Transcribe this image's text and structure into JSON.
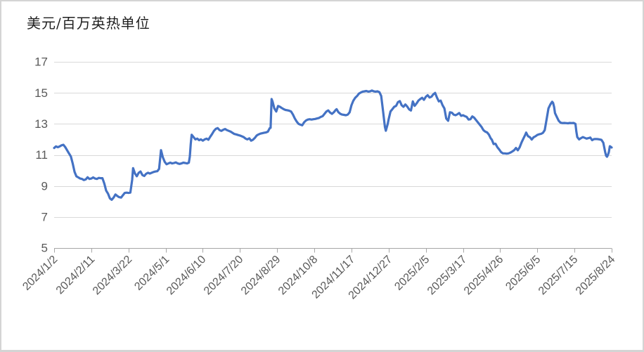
{
  "chart": {
    "title": "美元/百万英热单位"
  },
  "colors": {
    "line": "#4472C4",
    "gridline": "#d9d9d9",
    "axis": "#a6a6a6",
    "tick_label": "#595959",
    "title": "#1f1f1f",
    "frame_border": "#d4d4d4",
    "background": "#ffffff"
  },
  "chart_data": {
    "type": "line",
    "title": "美元/百万英热单位",
    "xlabel": "",
    "ylabel": "",
    "legend": "none",
    "grid": true,
    "ylim": [
      5,
      17
    ],
    "y_ticks": [
      5,
      7,
      9,
      11,
      13,
      15,
      17
    ],
    "xlim_days": [
      0,
      600
    ],
    "x_tick_interval_days": 40,
    "x_tick_labels": [
      "2024/1/2",
      "2024/2/11",
      "2024/3/22",
      "2024/5/1",
      "2024/6/10",
      "2024/7/20",
      "2024/8/29",
      "2024/10/8",
      "2024/11/17",
      "2024/12/27",
      "2025/2/5",
      "2025/3/17",
      "2025/4/26",
      "2025/6/5",
      "2025/7/15",
      "2025/8/24"
    ],
    "series_name": "美元/百万英热单位",
    "points_format": "[days_since_2024-01-02, usd_per_mmbtu]",
    "points": [
      [
        0,
        11.45
      ],
      [
        2,
        11.55
      ],
      [
        4,
        11.5
      ],
      [
        6,
        11.55
      ],
      [
        8,
        11.62
      ],
      [
        10,
        11.65
      ],
      [
        12,
        11.5
      ],
      [
        14,
        11.3
      ],
      [
        16,
        11.1
      ],
      [
        18,
        10.9
      ],
      [
        20,
        10.45
      ],
      [
        22,
        9.9
      ],
      [
        24,
        9.62
      ],
      [
        26,
        9.55
      ],
      [
        28,
        9.48
      ],
      [
        30,
        9.45
      ],
      [
        32,
        9.38
      ],
      [
        34,
        9.42
      ],
      [
        36,
        9.56
      ],
      [
        38,
        9.45
      ],
      [
        40,
        9.48
      ],
      [
        42,
        9.55
      ],
      [
        44,
        9.48
      ],
      [
        46,
        9.45
      ],
      [
        48,
        9.52
      ],
      [
        50,
        9.5
      ],
      [
        52,
        9.5
      ],
      [
        54,
        9.15
      ],
      [
        56,
        8.7
      ],
      [
        58,
        8.5
      ],
      [
        60,
        8.2
      ],
      [
        62,
        8.11
      ],
      [
        64,
        8.25
      ],
      [
        66,
        8.45
      ],
      [
        68,
        8.35
      ],
      [
        70,
        8.28
      ],
      [
        72,
        8.25
      ],
      [
        74,
        8.4
      ],
      [
        76,
        8.55
      ],
      [
        78,
        8.57
      ],
      [
        80,
        8.55
      ],
      [
        82,
        8.57
      ],
      [
        84,
        9.4
      ],
      [
        85,
        10.15
      ],
      [
        87,
        9.8
      ],
      [
        89,
        9.63
      ],
      [
        91,
        9.85
      ],
      [
        93,
        9.93
      ],
      [
        95,
        9.7
      ],
      [
        97,
        9.64
      ],
      [
        99,
        9.78
      ],
      [
        101,
        9.85
      ],
      [
        103,
        9.8
      ],
      [
        105,
        9.85
      ],
      [
        107,
        9.9
      ],
      [
        109,
        9.93
      ],
      [
        111,
        9.95
      ],
      [
        113,
        10.1
      ],
      [
        115,
        11.31
      ],
      [
        117,
        10.85
      ],
      [
        119,
        10.55
      ],
      [
        121,
        10.4
      ],
      [
        123,
        10.45
      ],
      [
        125,
        10.5
      ],
      [
        127,
        10.45
      ],
      [
        129,
        10.48
      ],
      [
        131,
        10.52
      ],
      [
        133,
        10.45
      ],
      [
        135,
        10.42
      ],
      [
        137,
        10.45
      ],
      [
        139,
        10.5
      ],
      [
        141,
        10.48
      ],
      [
        143,
        10.45
      ],
      [
        145,
        10.5
      ],
      [
        146,
        10.9
      ],
      [
        147,
        11.7
      ],
      [
        148,
        12.3
      ],
      [
        150,
        12.15
      ],
      [
        152,
        12.0
      ],
      [
        154,
        12.05
      ],
      [
        156,
        11.95
      ],
      [
        158,
        12.0
      ],
      [
        160,
        11.92
      ],
      [
        162,
        12.0
      ],
      [
        164,
        12.05
      ],
      [
        166,
        11.98
      ],
      [
        168,
        12.17
      ],
      [
        170,
        12.35
      ],
      [
        172,
        12.55
      ],
      [
        174,
        12.68
      ],
      [
        176,
        12.73
      ],
      [
        178,
        12.6
      ],
      [
        180,
        12.55
      ],
      [
        182,
        12.62
      ],
      [
        184,
        12.67
      ],
      [
        186,
        12.6
      ],
      [
        188,
        12.55
      ],
      [
        190,
        12.5
      ],
      [
        192,
        12.42
      ],
      [
        194,
        12.35
      ],
      [
        196,
        12.32
      ],
      [
        198,
        12.28
      ],
      [
        200,
        12.25
      ],
      [
        202,
        12.2
      ],
      [
        204,
        12.15
      ],
      [
        206,
        12.05
      ],
      [
        208,
        12.0
      ],
      [
        210,
        12.07
      ],
      [
        212,
        11.92
      ],
      [
        214,
        11.98
      ],
      [
        216,
        12.1
      ],
      [
        218,
        12.25
      ],
      [
        220,
        12.32
      ],
      [
        222,
        12.37
      ],
      [
        224,
        12.4
      ],
      [
        226,
        12.43
      ],
      [
        228,
        12.45
      ],
      [
        230,
        12.5
      ],
      [
        232,
        12.72
      ],
      [
        233,
        12.75
      ],
      [
        234,
        14.6
      ],
      [
        235,
        14.45
      ],
      [
        237,
        14.0
      ],
      [
        239,
        13.8
      ],
      [
        241,
        14.15
      ],
      [
        243,
        14.1
      ],
      [
        245,
        14.02
      ],
      [
        247,
        13.95
      ],
      [
        249,
        13.9
      ],
      [
        251,
        13.88
      ],
      [
        253,
        13.85
      ],
      [
        255,
        13.8
      ],
      [
        257,
        13.6
      ],
      [
        259,
        13.35
      ],
      [
        261,
        13.15
      ],
      [
        263,
        13.0
      ],
      [
        265,
        12.95
      ],
      [
        267,
        12.91
      ],
      [
        269,
        13.1
      ],
      [
        271,
        13.22
      ],
      [
        273,
        13.28
      ],
      [
        275,
        13.3
      ],
      [
        277,
        13.28
      ],
      [
        279,
        13.3
      ],
      [
        281,
        13.32
      ],
      [
        283,
        13.35
      ],
      [
        285,
        13.38
      ],
      [
        287,
        13.45
      ],
      [
        289,
        13.5
      ],
      [
        291,
        13.65
      ],
      [
        293,
        13.8
      ],
      [
        295,
        13.87
      ],
      [
        297,
        13.73
      ],
      [
        299,
        13.65
      ],
      [
        301,
        13.75
      ],
      [
        303,
        13.9
      ],
      [
        304,
        13.95
      ],
      [
        306,
        13.75
      ],
      [
        308,
        13.65
      ],
      [
        310,
        13.6
      ],
      [
        312,
        13.58
      ],
      [
        314,
        13.56
      ],
      [
        316,
        13.6
      ],
      [
        318,
        13.75
      ],
      [
        320,
        14.2
      ],
      [
        322,
        14.5
      ],
      [
        324,
        14.68
      ],
      [
        326,
        14.8
      ],
      [
        328,
        14.95
      ],
      [
        330,
        15.02
      ],
      [
        332,
        15.08
      ],
      [
        334,
        15.1
      ],
      [
        336,
        15.12
      ],
      [
        338,
        15.08
      ],
      [
        340,
        15.1
      ],
      [
        342,
        15.15
      ],
      [
        344,
        15.1
      ],
      [
        346,
        15.08
      ],
      [
        348,
        15.1
      ],
      [
        350,
        15.05
      ],
      [
        352,
        14.8
      ],
      [
        354,
        13.8
      ],
      [
        356,
        12.8
      ],
      [
        357,
        12.56
      ],
      [
        359,
        13.0
      ],
      [
        360,
        13.3
      ],
      [
        362,
        13.8
      ],
      [
        364,
        13.95
      ],
      [
        366,
        14.1
      ],
      [
        368,
        14.16
      ],
      [
        370,
        14.4
      ],
      [
        372,
        14.47
      ],
      [
        374,
        14.2
      ],
      [
        376,
        14.1
      ],
      [
        378,
        14.25
      ],
      [
        380,
        14.12
      ],
      [
        382,
        13.94
      ],
      [
        384,
        13.86
      ],
      [
        386,
        14.45
      ],
      [
        388,
        14.16
      ],
      [
        390,
        14.32
      ],
      [
        392,
        14.5
      ],
      [
        394,
        14.6
      ],
      [
        396,
        14.68
      ],
      [
        398,
        14.55
      ],
      [
        400,
        14.75
      ],
      [
        402,
        14.85
      ],
      [
        404,
        14.7
      ],
      [
        406,
        14.75
      ],
      [
        408,
        14.9
      ],
      [
        410,
        15.0
      ],
      [
        412,
        14.7
      ],
      [
        414,
        14.45
      ],
      [
        416,
        14.5
      ],
      [
        418,
        14.2
      ],
      [
        420,
        14.0
      ],
      [
        422,
        13.35
      ],
      [
        424,
        13.2
      ],
      [
        426,
        13.75
      ],
      [
        428,
        13.72
      ],
      [
        430,
        13.6
      ],
      [
        432,
        13.56
      ],
      [
        434,
        13.62
      ],
      [
        436,
        13.7
      ],
      [
        438,
        13.52
      ],
      [
        440,
        13.56
      ],
      [
        442,
        13.5
      ],
      [
        444,
        13.45
      ],
      [
        446,
        13.28
      ],
      [
        448,
        13.3
      ],
      [
        450,
        13.48
      ],
      [
        452,
        13.4
      ],
      [
        454,
        13.25
      ],
      [
        456,
        13.1
      ],
      [
        458,
        12.95
      ],
      [
        460,
        12.8
      ],
      [
        462,
        12.6
      ],
      [
        464,
        12.5
      ],
      [
        466,
        12.45
      ],
      [
        468,
        12.3
      ],
      [
        470,
        12.05
      ],
      [
        471,
        11.99
      ],
      [
        473,
        11.7
      ],
      [
        475,
        11.72
      ],
      [
        477,
        11.5
      ],
      [
        479,
        11.35
      ],
      [
        481,
        11.18
      ],
      [
        483,
        11.1
      ],
      [
        485,
        11.1
      ],
      [
        487,
        11.08
      ],
      [
        489,
        11.1
      ],
      [
        491,
        11.15
      ],
      [
        493,
        11.22
      ],
      [
        495,
        11.3
      ],
      [
        497,
        11.45
      ],
      [
        499,
        11.3
      ],
      [
        501,
        11.5
      ],
      [
        503,
        11.8
      ],
      [
        505,
        12.05
      ],
      [
        507,
        12.3
      ],
      [
        508,
        12.44
      ],
      [
        510,
        12.21
      ],
      [
        512,
        12.14
      ],
      [
        514,
        11.99
      ],
      [
        516,
        12.14
      ],
      [
        518,
        12.2
      ],
      [
        520,
        12.29
      ],
      [
        522,
        12.33
      ],
      [
        524,
        12.36
      ],
      [
        526,
        12.42
      ],
      [
        528,
        12.6
      ],
      [
        530,
        13.3
      ],
      [
        532,
        14.0
      ],
      [
        534,
        14.25
      ],
      [
        536,
        14.43
      ],
      [
        537,
        14.35
      ],
      [
        538,
        14.1
      ],
      [
        539,
        13.7
      ],
      [
        541,
        13.45
      ],
      [
        543,
        13.2
      ],
      [
        545,
        13.08
      ],
      [
        547,
        13.05
      ],
      [
        549,
        13.06
      ],
      [
        551,
        13.05
      ],
      [
        553,
        13.04
      ],
      [
        555,
        13.06
      ],
      [
        557,
        13.05
      ],
      [
        559,
        13.06
      ],
      [
        561,
        13.0
      ],
      [
        562,
        12.5
      ],
      [
        563,
        12.15
      ],
      [
        565,
        12.0
      ],
      [
        567,
        12.08
      ],
      [
        569,
        12.15
      ],
      [
        571,
        12.1
      ],
      [
        573,
        12.05
      ],
      [
        575,
        12.08
      ],
      [
        577,
        12.12
      ],
      [
        579,
        11.95
      ],
      [
        581,
        12.02
      ],
      [
        583,
        12.03
      ],
      [
        585,
        12.02
      ],
      [
        587,
        12.0
      ],
      [
        589,
        11.97
      ],
      [
        591,
        11.79
      ],
      [
        593,
        11.2
      ],
      [
        594,
        10.95
      ],
      [
        595,
        10.88
      ],
      [
        596,
        11.0
      ],
      [
        597,
        11.18
      ],
      [
        598,
        11.56
      ],
      [
        599,
        11.52
      ],
      [
        600,
        11.48
      ]
    ]
  }
}
